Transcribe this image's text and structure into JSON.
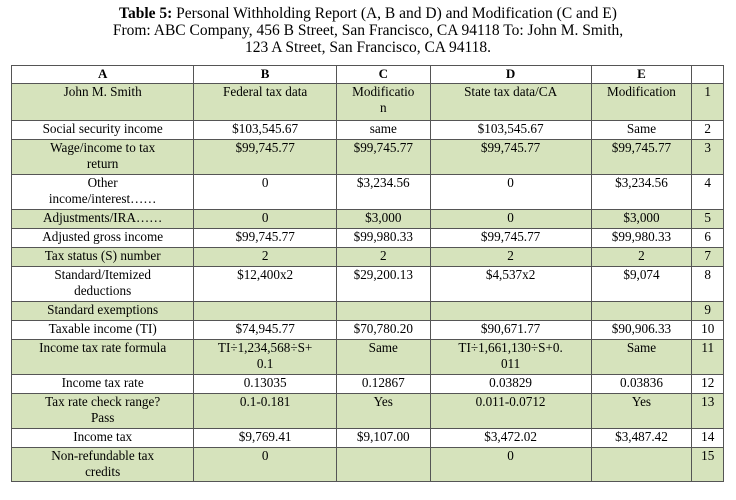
{
  "caption": {
    "label": "Table 5:",
    "line1": "Personal Withholding Report (A, B and D) and Modification (C and E)",
    "line2": "From: ABC Company, 456 B Street, San Francisco, CA 94118 To: John M. Smith,",
    "line3": "123 A Street, San Francisco, CA 94118."
  },
  "columns": [
    "A",
    "B",
    "C",
    "D",
    "E",
    ""
  ],
  "rows": [
    {
      "h": 37,
      "shade": "green",
      "cells": [
        "John M. Smith",
        "Federal tax data",
        "Modificatio\nn",
        "State tax data/CA",
        "Modification",
        "1"
      ]
    },
    {
      "h": 19,
      "shade": "white",
      "cells": [
        "Social security income",
        "$103,545.67",
        "same",
        "$103,545.67",
        "Same",
        "2"
      ]
    },
    {
      "h": 35,
      "shade": "green",
      "cells": [
        "Wage/income to tax\nreturn",
        "$99,745.77",
        "$99,745.77",
        "$99,745.77",
        "$99,745.77",
        "3"
      ]
    },
    {
      "h": 35,
      "shade": "white",
      "cells": [
        "Other\nincome/interest……",
        "0",
        "$3,234.56",
        "0",
        "$3,234.56",
        "4"
      ]
    },
    {
      "h": 19,
      "shade": "green",
      "cells": [
        "Adjustments/IRA……",
        "0",
        "$3,000",
        "0",
        "$3,000",
        "5"
      ]
    },
    {
      "h": 19,
      "shade": "white",
      "cells": [
        "Adjusted gross income",
        "$99,745.77",
        "$99,980.33",
        "$99,745.77",
        "$99,980.33",
        "6"
      ]
    },
    {
      "h": 19,
      "shade": "green",
      "cells": [
        "Tax status (S) number",
        "2",
        "2",
        "2",
        "2",
        "7"
      ]
    },
    {
      "h": 35,
      "shade": "white",
      "cells": [
        "Standard/Itemized\ndeductions",
        "$12,400x2",
        "$29,200.13",
        "$4,537x2",
        "$9,074",
        "8"
      ]
    },
    {
      "h": 19,
      "shade": "green",
      "cells": [
        "Standard exemptions",
        "",
        "",
        "",
        "",
        "9"
      ]
    },
    {
      "h": 19,
      "shade": "white",
      "cells": [
        "Taxable income (TI)",
        "$74,945.77",
        "$70,780.20",
        "$90,671.77",
        "$90,906.33",
        "10"
      ]
    },
    {
      "h": 35,
      "shade": "green",
      "cells": [
        "Income tax rate formula",
        "TI÷1,234,568÷S+\n0.1",
        "Same",
        "TI÷1,661,130÷S+0.\n011",
        "Same",
        "11"
      ]
    },
    {
      "h": 19,
      "shade": "white",
      "cells": [
        "Income tax rate",
        "0.13035",
        "0.12867",
        "0.03829",
        "0.03836",
        "12"
      ]
    },
    {
      "h": 35,
      "shade": "green",
      "cells": [
        "Tax rate check range?\nPass",
        "0.1-0.181",
        "Yes",
        "0.011-0.0712",
        "Yes",
        "13"
      ]
    },
    {
      "h": 19,
      "shade": "white",
      "cells": [
        "Income tax",
        "$9,769.41",
        "$9,107.00",
        "$3,472.02",
        "$3,487.42",
        "14"
      ]
    },
    {
      "h": 34,
      "shade": "green",
      "cells": [
        "Non-refundable tax\ncredits",
        "0",
        "",
        "0",
        "",
        "15"
      ]
    }
  ]
}
